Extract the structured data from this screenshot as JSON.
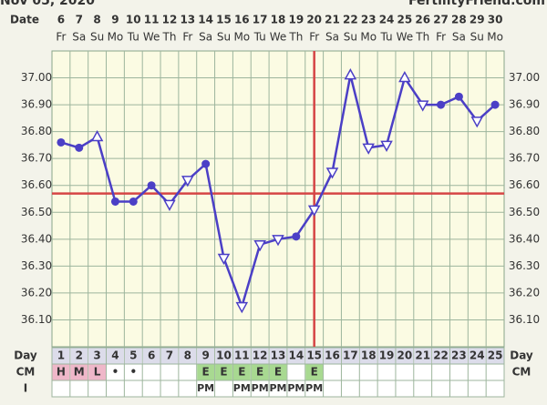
{
  "header": {
    "date": "Nov 05, 2020",
    "site": "FertilityFriend.com"
  },
  "chart_data": {
    "type": "line",
    "date_label": "Date",
    "dates": [
      "6",
      "7",
      "8",
      "9",
      "10",
      "11",
      "12",
      "13",
      "14",
      "15",
      "16",
      "17",
      "18",
      "19",
      "20",
      "21",
      "22",
      "23",
      "24",
      "25",
      "26",
      "27",
      "28",
      "29",
      "30"
    ],
    "weekdays": [
      "Fr",
      "Sa",
      "Su",
      "Mo",
      "Tu",
      "We",
      "Th",
      "Fr",
      "Sa",
      "Su",
      "Mo",
      "Tu",
      "We",
      "Th",
      "Fr",
      "Sa",
      "Su",
      "Mo",
      "Tu",
      "We",
      "Th",
      "Fr",
      "Sa",
      "Su",
      "Mo"
    ],
    "categories": [
      "1",
      "2",
      "3",
      "4",
      "5",
      "6",
      "7",
      "8",
      "9",
      "10",
      "11",
      "12",
      "13",
      "14",
      "15",
      "16",
      "17",
      "18",
      "19",
      "20",
      "21",
      "22",
      "23",
      "24",
      "25"
    ],
    "values": [
      36.76,
      36.74,
      36.78,
      36.54,
      36.54,
      36.6,
      36.53,
      36.62,
      36.68,
      36.33,
      36.15,
      36.38,
      36.4,
      36.41,
      36.51,
      36.65,
      37.01,
      36.74,
      36.75,
      37.0,
      36.9,
      36.9,
      36.93,
      36.84,
      36.9
    ],
    "markers": [
      "dot",
      "dot",
      "up",
      "dot",
      "dot",
      "dot",
      "down",
      "down",
      "dot",
      "down",
      "down",
      "down",
      "down",
      "dot",
      "down",
      "down",
      "up",
      "down",
      "down",
      "up",
      "down",
      "dot",
      "dot",
      "down",
      "dot"
    ],
    "color": "#4b3fc6",
    "ylim": [
      36.0,
      37.1
    ],
    "yticks": [
      {
        "value": 36.1,
        "label": "36.10"
      },
      {
        "value": 36.2,
        "label": "36.20"
      },
      {
        "value": 36.3,
        "label": "36.30"
      },
      {
        "value": 36.4,
        "label": "36.40"
      },
      {
        "value": 36.5,
        "label": "36.50"
      },
      {
        "value": 36.6,
        "label": "36.60"
      },
      {
        "value": 36.7,
        "label": "36.70"
      },
      {
        "value": 36.8,
        "label": "36.80"
      },
      {
        "value": 36.9,
        "label": "36.90"
      },
      {
        "value": 37.0,
        "label": "37.00"
      }
    ],
    "grid": true,
    "coverline": 36.57,
    "ovulation_day": 15,
    "line_marker_color": "#d54545",
    "row_labels": {
      "day": "Day",
      "cm": "CM",
      "i": "I"
    },
    "cm": [
      "H",
      "M",
      "L",
      "•",
      "•",
      null,
      null,
      null,
      "E",
      "E",
      "E",
      "E",
      "E",
      null,
      "E",
      null,
      null,
      null,
      null,
      null,
      null,
      null,
      null,
      null,
      null
    ],
    "cm_colors": {
      "H": "#efb7c9",
      "M": "#efb7c9",
      "L": "#efb7c9",
      "E": "#a8d991"
    },
    "intercourse": [
      null,
      null,
      null,
      null,
      null,
      null,
      null,
      null,
      "PM",
      null,
      "PM",
      "PM",
      "PM",
      "PM",
      "PM",
      null,
      null,
      null,
      null,
      null,
      null,
      null,
      null,
      null,
      null
    ]
  }
}
